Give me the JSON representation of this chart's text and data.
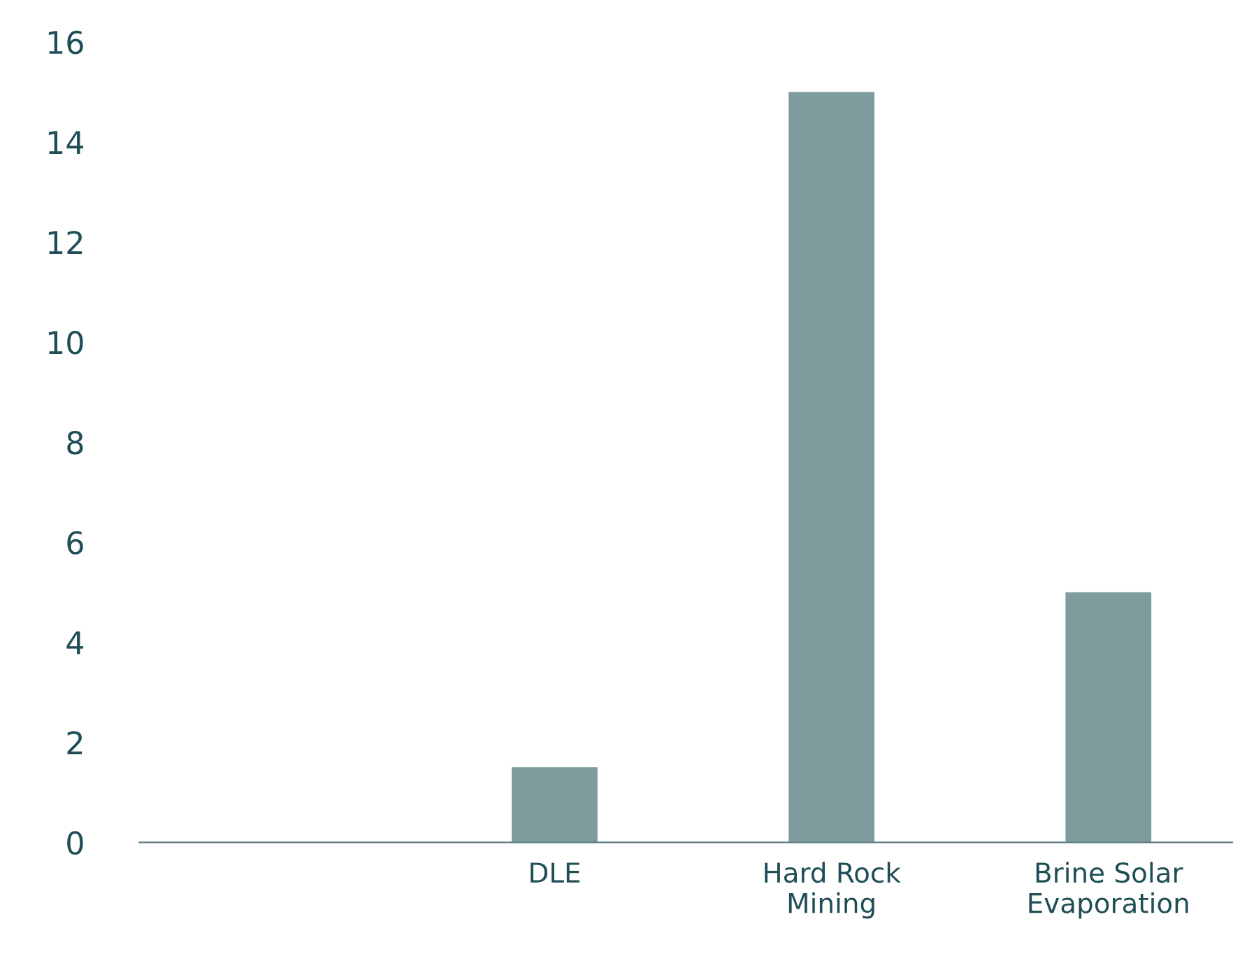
{
  "chart_data": {
    "type": "bar",
    "categories": [
      null,
      "DLE",
      "Hard Rock\nMining",
      "Brine Solar\nEvaporation"
    ],
    "values": [
      0,
      1.5,
      15,
      5
    ],
    "color": "#7e9c9e",
    "ylim": [
      0,
      16
    ],
    "yticks": [
      0,
      2,
      4,
      6,
      8,
      10,
      12,
      14,
      16
    ],
    "grid": false,
    "legend": false
  }
}
